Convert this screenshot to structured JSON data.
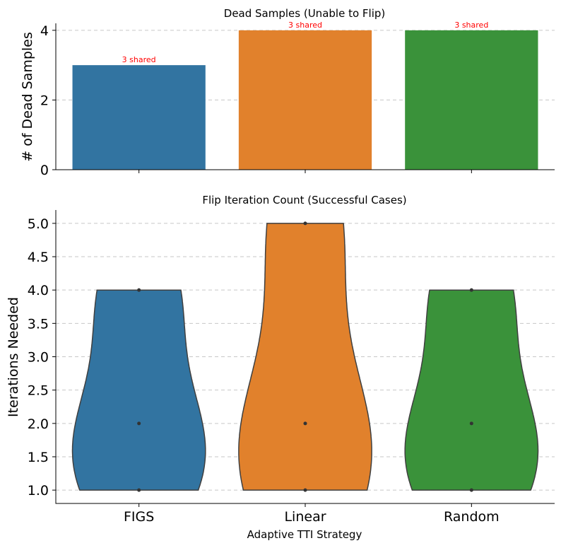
{
  "chart_data": [
    {
      "type": "bar",
      "title": "Dead Samples (Unable to Flip)",
      "xlabel": "",
      "ylabel": "# of Dead Samples",
      "categories": [
        "FIGS",
        "Linear",
        "Random"
      ],
      "values": [
        3,
        4,
        4
      ],
      "annotations": [
        "3 shared",
        "3 shared",
        "3 shared"
      ],
      "colors": [
        "#3274a1",
        "#e1812c",
        "#3a923a"
      ],
      "ylim": [
        0,
        4.2
      ],
      "yticks": [
        "0",
        "2",
        "4"
      ],
      "grid": true
    },
    {
      "type": "violin",
      "title": "Flip Iteration Count (Successful Cases)",
      "xlabel": "Adaptive TTI Strategy",
      "ylabel": "Iterations Needed",
      "categories": [
        "FIGS",
        "Linear",
        "Random"
      ],
      "colors": [
        "#3274a1",
        "#e1812c",
        "#3a923a"
      ],
      "ylim": [
        0.8,
        5.2
      ],
      "yticks": [
        "1.0",
        "1.5",
        "2.0",
        "2.5",
        "3.0",
        "3.5",
        "4.0",
        "4.5",
        "5.0"
      ],
      "points": [
        [
          1,
          2,
          4
        ],
        [
          1,
          2,
          5
        ],
        [
          1,
          2,
          4
        ]
      ],
      "grid": true
    }
  ]
}
